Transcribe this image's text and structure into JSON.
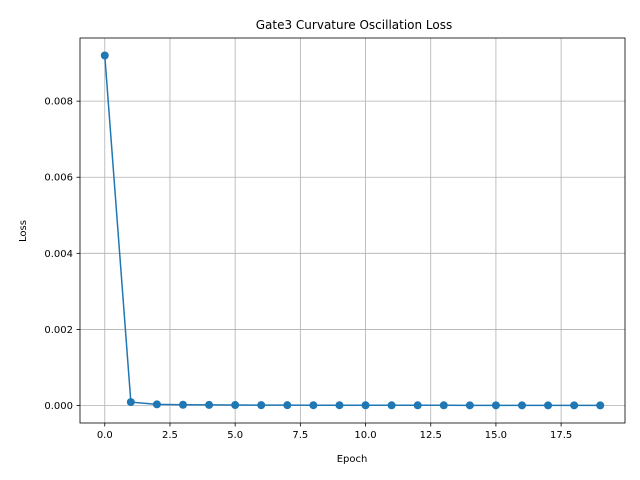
{
  "chart_data": {
    "type": "line",
    "title": "Gate3 Curvature Oscillation Loss",
    "xlabel": "Epoch",
    "ylabel": "Loss",
    "x": [
      0,
      1,
      2,
      3,
      4,
      5,
      6,
      7,
      8,
      9,
      10,
      11,
      12,
      13,
      14,
      15,
      16,
      17,
      18,
      19
    ],
    "series": [
      {
        "values": [
          0.0092,
          9e-05,
          3e-05,
          2e-05,
          1.5e-05,
          1.2e-05,
          1e-05,
          9e-06,
          8e-06,
          7e-06,
          6.5e-06,
          6e-06,
          5.5e-06,
          5e-06,
          4.8e-06,
          4.5e-06,
          4.3e-06,
          4e-06,
          3.8e-06,
          3.6e-06
        ],
        "color": "#1f77b4",
        "marker": "circle"
      }
    ],
    "xlim": [
      -0.95,
      19.95
    ],
    "ylim": [
      -0.00046,
      0.00966
    ],
    "xticks": [
      0.0,
      2.5,
      5.0,
      7.5,
      10.0,
      12.5,
      15.0,
      17.5
    ],
    "xtick_labels": [
      "0.0",
      "2.5",
      "5.0",
      "7.5",
      "10.0",
      "12.5",
      "15.0",
      "17.5"
    ],
    "yticks": [
      0.0,
      0.002,
      0.004,
      0.006,
      0.008
    ],
    "ytick_labels": [
      "0.000",
      "0.002",
      "0.004",
      "0.006",
      "0.008"
    ],
    "grid": true,
    "legend": "none"
  }
}
